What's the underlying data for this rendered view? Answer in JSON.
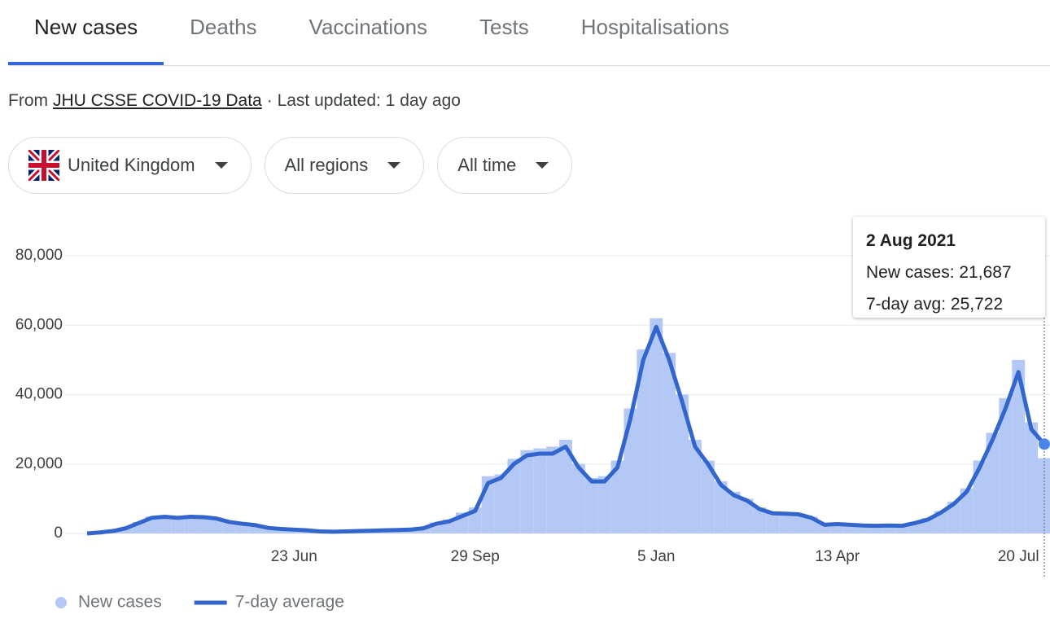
{
  "tabs": [
    "New cases",
    "Deaths",
    "Vaccinations",
    "Tests",
    "Hospitalisations"
  ],
  "source": {
    "prefix": "From",
    "link": "JHU CSSE COVID-19 Data",
    "suffix": "· Last updated: 1 day ago"
  },
  "filters": [
    "United Kingdom",
    "All regions",
    "All time"
  ],
  "tooltip": {
    "title": "2 Aug 2021",
    "lines": [
      "New cases: 21,687",
      "7-day avg: 25,722"
    ]
  },
  "chart_data": {
    "type": "bar",
    "categories": [
      null,
      null,
      null,
      null,
      null,
      null,
      null,
      null,
      null,
      null,
      null,
      null,
      null,
      null,
      null,
      null,
      "23 Jun",
      null,
      null,
      null,
      null,
      null,
      null,
      null,
      null,
      null,
      null,
      null,
      null,
      null,
      "29 Sep",
      null,
      null,
      null,
      null,
      null,
      null,
      null,
      null,
      null,
      null,
      null,
      null,
      null,
      "5 Jan",
      null,
      null,
      null,
      null,
      null,
      null,
      null,
      null,
      null,
      null,
      null,
      null,
      null,
      "13 Apr",
      null,
      null,
      null,
      null,
      null,
      null,
      null,
      null,
      null,
      null,
      null,
      null,
      null,
      "20 Jul",
      null,
      null
    ],
    "series": [
      {
        "name": "New cases",
        "type": "bar",
        "color": "#b3c8f4",
        "values": [
          0,
          400,
          900,
          1800,
          3300,
          4900,
          5100,
          4700,
          5000,
          4900,
          4400,
          3500,
          2900,
          2500,
          1700,
          1400,
          1200,
          1000,
          700,
          600,
          700,
          800,
          900,
          1000,
          1100,
          1300,
          1800,
          3200,
          4000,
          6000,
          7500,
          16500,
          17000,
          21500,
          24000,
          24500,
          25000,
          27000,
          20000,
          16000,
          16500,
          21000,
          36000,
          53000,
          62000,
          52000,
          40000,
          27000,
          21000,
          15000,
          12000,
          10000,
          7500,
          6200,
          6000,
          5800,
          4800,
          2800,
          3000,
          2700,
          2500,
          2400,
          2500,
          2400,
          3300,
          4400,
          6500,
          9200,
          13000,
          21000,
          29000,
          39000,
          50000,
          32000,
          21687
        ]
      },
      {
        "name": "7-day average",
        "type": "line",
        "color": "#3366cc",
        "values": [
          0,
          300,
          700,
          1500,
          3000,
          4500,
          4800,
          4500,
          4800,
          4700,
          4300,
          3300,
          2800,
          2400,
          1600,
          1300,
          1100,
          900,
          600,
          500,
          600,
          700,
          800,
          900,
          1000,
          1100,
          1500,
          2800,
          3500,
          5000,
          6500,
          14500,
          16000,
          20000,
          22500,
          23000,
          23000,
          25000,
          19000,
          15000,
          15000,
          19000,
          33000,
          50000,
          59500,
          50000,
          38000,
          25000,
          20000,
          14000,
          11000,
          9500,
          7000,
          5800,
          5700,
          5500,
          4500,
          2500,
          2700,
          2500,
          2300,
          2200,
          2300,
          2200,
          3000,
          4000,
          6000,
          8500,
          12000,
          19000,
          27000,
          36000,
          46500,
          30000,
          25722
        ]
      }
    ],
    "ylim": [
      0,
      80000
    ],
    "yticks": [
      0,
      {
        "value": 20000,
        "label": "20,000"
      },
      {
        "value": 40000,
        "label": "40,000"
      },
      {
        "value": 60000,
        "label": "60,000"
      },
      {
        "value": 80000,
        "label": "80,000"
      }
    ],
    "grid": true,
    "legend": "bottom"
  }
}
